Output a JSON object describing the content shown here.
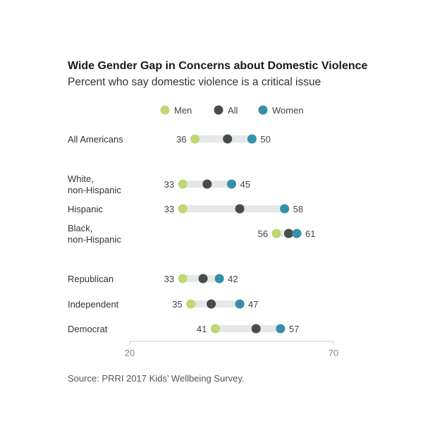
{
  "chart_data": {
    "type": "dot-range",
    "title": "Wide Gender Gap in Concerns about Domestic Violence",
    "subtitle": "Percent who say domestic violence is a critical issue",
    "xlim": [
      20,
      70
    ],
    "ticks": [
      "20",
      "70"
    ],
    "legend": {
      "placement": "top",
      "items": [
        {
          "key": "men",
          "label": "Men",
          "color": "#bfd872"
        },
        {
          "key": "all",
          "label": "All",
          "color": "#474c4f"
        },
        {
          "key": "women",
          "label": "Women",
          "color": "#3590ab"
        }
      ]
    },
    "rows": [
      {
        "label": [
          "All Americans"
        ],
        "men": 36,
        "all": 44,
        "women": 50,
        "men_label": "36",
        "women_label": "50"
      },
      {
        "label": [
          "White,",
          "non-Hispanic"
        ],
        "men": 33,
        "all": 39,
        "women": 45,
        "men_label": "33",
        "women_label": "45"
      },
      {
        "label": [
          "Hispanic"
        ],
        "men": 33,
        "all": 47,
        "women": 58,
        "men_label": "33",
        "women_label": "58"
      },
      {
        "label": [
          "Black,",
          "non-Hispanic"
        ],
        "men": 56,
        "all": 59,
        "women": 61,
        "men_label": "56",
        "women_label": "61"
      },
      {
        "label": [
          "Republican"
        ],
        "men": 33,
        "all": 38,
        "women": 42,
        "men_label": "33",
        "women_label": "42"
      },
      {
        "label": [
          "Independent"
        ],
        "men": 35,
        "all": 40,
        "women": 47,
        "men_label": "35",
        "women_label": "47"
      },
      {
        "label": [
          "Democrat"
        ],
        "men": 41,
        "all": 51,
        "women": 57,
        "men_label": "41",
        "women_label": "57"
      }
    ],
    "bar_color": "#e6e7e7",
    "source": "Source: PRRI 2017 Kids’ Wellbeing Survey."
  }
}
